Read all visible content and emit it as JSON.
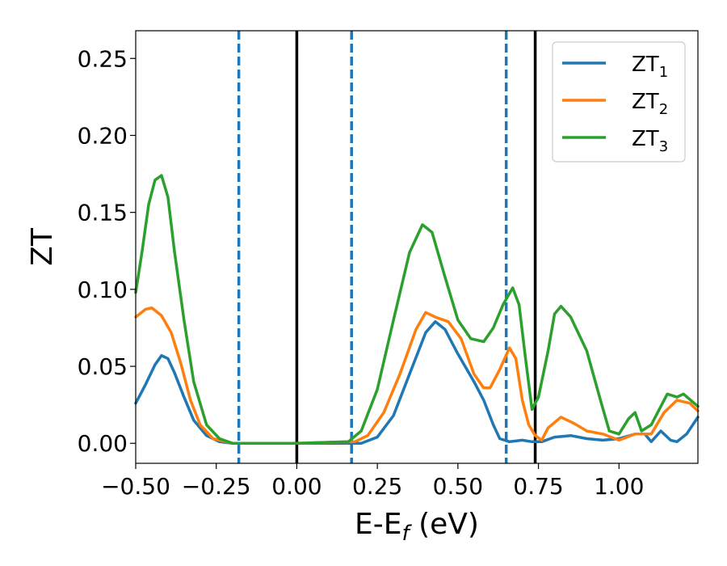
{
  "chart_data": {
    "type": "line",
    "xlabel": {
      "base": "E-E",
      "sub": "f",
      "tail": " (eV)"
    },
    "ylabel": "ZT",
    "xlim": [
      -0.5,
      1.245
    ],
    "ylim": [
      -0.013,
      0.268
    ],
    "xticks": [
      -0.5,
      -0.25,
      0.0,
      0.25,
      0.5,
      0.75,
      1.0
    ],
    "xtick_labels": [
      "−0.50",
      "−0.25",
      "0.00",
      "0.25",
      "0.50",
      "0.75",
      "1.00"
    ],
    "yticks": [
      0.0,
      0.05,
      0.1,
      0.15,
      0.2,
      0.25
    ],
    "ytick_labels": [
      "0.00",
      "0.05",
      "0.10",
      "0.15",
      "0.20",
      "0.25"
    ],
    "grid": false,
    "legend_position": "top-right",
    "vlines_solid": [
      0.0,
      0.74
    ],
    "vlines_dashed": [
      -0.18,
      0.17,
      0.65
    ],
    "vline_solid_color": "#000000",
    "vline_dashed_color": "#1f77b4",
    "series": [
      {
        "name": "ZT",
        "sub": "1",
        "color": "#1f77b4",
        "points": [
          [
            -0.5,
            0.026
          ],
          [
            -0.47,
            0.038
          ],
          [
            -0.44,
            0.051
          ],
          [
            -0.42,
            0.057
          ],
          [
            -0.4,
            0.055
          ],
          [
            -0.38,
            0.046
          ],
          [
            -0.35,
            0.03
          ],
          [
            -0.32,
            0.015
          ],
          [
            -0.28,
            0.005
          ],
          [
            -0.24,
            0.001
          ],
          [
            -0.2,
            0.0
          ],
          [
            0.0,
            0.0
          ],
          [
            0.2,
            0.0
          ],
          [
            0.25,
            0.004
          ],
          [
            0.3,
            0.018
          ],
          [
            0.35,
            0.045
          ],
          [
            0.4,
            0.072
          ],
          [
            0.43,
            0.079
          ],
          [
            0.46,
            0.074
          ],
          [
            0.5,
            0.058
          ],
          [
            0.55,
            0.04
          ],
          [
            0.58,
            0.028
          ],
          [
            0.61,
            0.012
          ],
          [
            0.63,
            0.003
          ],
          [
            0.66,
            0.001
          ],
          [
            0.7,
            0.002
          ],
          [
            0.73,
            0.001
          ],
          [
            0.76,
            0.001
          ],
          [
            0.8,
            0.004
          ],
          [
            0.85,
            0.005
          ],
          [
            0.9,
            0.003
          ],
          [
            0.95,
            0.002
          ],
          [
            1.0,
            0.003
          ],
          [
            1.05,
            0.006
          ],
          [
            1.08,
            0.006
          ],
          [
            1.1,
            0.001
          ],
          [
            1.13,
            0.008
          ],
          [
            1.16,
            0.002
          ],
          [
            1.18,
            0.001
          ],
          [
            1.21,
            0.006
          ],
          [
            1.245,
            0.017
          ]
        ]
      },
      {
        "name": "ZT",
        "sub": "2",
        "color": "#ff7f0e",
        "points": [
          [
            -0.5,
            0.082
          ],
          [
            -0.47,
            0.087
          ],
          [
            -0.45,
            0.088
          ],
          [
            -0.42,
            0.083
          ],
          [
            -0.39,
            0.072
          ],
          [
            -0.36,
            0.052
          ],
          [
            -0.33,
            0.028
          ],
          [
            -0.3,
            0.012
          ],
          [
            -0.26,
            0.003
          ],
          [
            -0.2,
            0.0
          ],
          [
            0.0,
            0.0
          ],
          [
            0.18,
            0.001
          ],
          [
            0.22,
            0.005
          ],
          [
            0.27,
            0.02
          ],
          [
            0.32,
            0.045
          ],
          [
            0.37,
            0.074
          ],
          [
            0.4,
            0.085
          ],
          [
            0.43,
            0.082
          ],
          [
            0.47,
            0.079
          ],
          [
            0.51,
            0.068
          ],
          [
            0.55,
            0.045
          ],
          [
            0.58,
            0.036
          ],
          [
            0.6,
            0.036
          ],
          [
            0.63,
            0.048
          ],
          [
            0.66,
            0.062
          ],
          [
            0.68,
            0.055
          ],
          [
            0.7,
            0.028
          ],
          [
            0.72,
            0.012
          ],
          [
            0.74,
            0.005
          ],
          [
            0.76,
            0.002
          ],
          [
            0.78,
            0.01
          ],
          [
            0.82,
            0.017
          ],
          [
            0.86,
            0.013
          ],
          [
            0.9,
            0.008
          ],
          [
            0.95,
            0.006
          ],
          [
            1.0,
            0.002
          ],
          [
            1.05,
            0.006
          ],
          [
            1.1,
            0.006
          ],
          [
            1.14,
            0.02
          ],
          [
            1.18,
            0.028
          ],
          [
            1.22,
            0.026
          ],
          [
            1.245,
            0.021
          ]
        ]
      },
      {
        "name": "ZT",
        "sub": "3",
        "color": "#2ca02c",
        "points": [
          [
            -0.5,
            0.098
          ],
          [
            -0.48,
            0.125
          ],
          [
            -0.46,
            0.155
          ],
          [
            -0.44,
            0.171
          ],
          [
            -0.42,
            0.174
          ],
          [
            -0.4,
            0.16
          ],
          [
            -0.38,
            0.125
          ],
          [
            -0.35,
            0.08
          ],
          [
            -0.32,
            0.04
          ],
          [
            -0.28,
            0.012
          ],
          [
            -0.24,
            0.003
          ],
          [
            -0.2,
            0.0
          ],
          [
            0.0,
            0.0
          ],
          [
            0.16,
            0.001
          ],
          [
            0.2,
            0.008
          ],
          [
            0.25,
            0.035
          ],
          [
            0.3,
            0.08
          ],
          [
            0.35,
            0.124
          ],
          [
            0.39,
            0.142
          ],
          [
            0.42,
            0.137
          ],
          [
            0.46,
            0.108
          ],
          [
            0.5,
            0.08
          ],
          [
            0.54,
            0.068
          ],
          [
            0.58,
            0.066
          ],
          [
            0.61,
            0.075
          ],
          [
            0.64,
            0.09
          ],
          [
            0.67,
            0.101
          ],
          [
            0.69,
            0.09
          ],
          [
            0.71,
            0.055
          ],
          [
            0.73,
            0.022
          ],
          [
            0.75,
            0.03
          ],
          [
            0.78,
            0.06
          ],
          [
            0.8,
            0.084
          ],
          [
            0.82,
            0.089
          ],
          [
            0.85,
            0.082
          ],
          [
            0.9,
            0.06
          ],
          [
            0.94,
            0.03
          ],
          [
            0.97,
            0.008
          ],
          [
            1.0,
            0.006
          ],
          [
            1.03,
            0.016
          ],
          [
            1.05,
            0.02
          ],
          [
            1.07,
            0.008
          ],
          [
            1.1,
            0.012
          ],
          [
            1.15,
            0.032
          ],
          [
            1.18,
            0.03
          ],
          [
            1.2,
            0.032
          ],
          [
            1.245,
            0.024
          ]
        ]
      }
    ]
  }
}
